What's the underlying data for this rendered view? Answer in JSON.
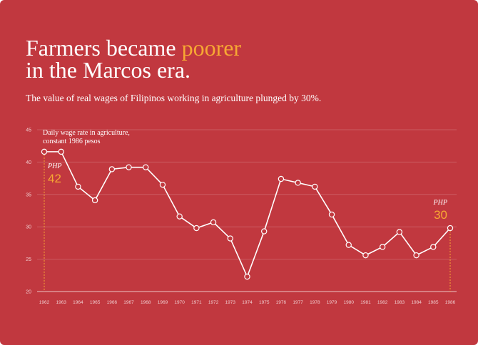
{
  "chart_data": {
    "type": "line",
    "title": [
      "Farmers became",
      "poorer",
      "in the Marcos era."
    ],
    "subtitle": "The value of real wages of Filipinos working in agriculture plunged by 30%.",
    "ylabel": [
      "Daily wage rate in agriculture,",
      "constant 1986 pesos"
    ],
    "categories": [
      "1962",
      "1963",
      "1964",
      "1965",
      "1966",
      "1967",
      "1968",
      "1969",
      "1970",
      "1971",
      "1972",
      "1973",
      "1974",
      "1975",
      "1976",
      "1977",
      "1978",
      "1979",
      "1980",
      "1981",
      "1982",
      "1983",
      "1984",
      "1985",
      "1986"
    ],
    "values": [
      41.6,
      41.6,
      36.2,
      34.1,
      38.9,
      39.2,
      39.2,
      36.5,
      31.6,
      29.8,
      30.7,
      28.2,
      22.3,
      29.3,
      37.4,
      36.8,
      36.2,
      31.9,
      27.2,
      25.6,
      26.9,
      29.2,
      25.6,
      26.9,
      29.8
    ],
    "color": "#ffffff",
    "highlight_color": "#f7a833",
    "ylim": [
      20,
      45
    ],
    "yticks": [
      20,
      25,
      30,
      35,
      40,
      45
    ],
    "grid": true,
    "annotations": [
      {
        "unit": "PHP",
        "value": 42
      },
      {
        "unit": "PHP",
        "value": 30
      }
    ]
  }
}
